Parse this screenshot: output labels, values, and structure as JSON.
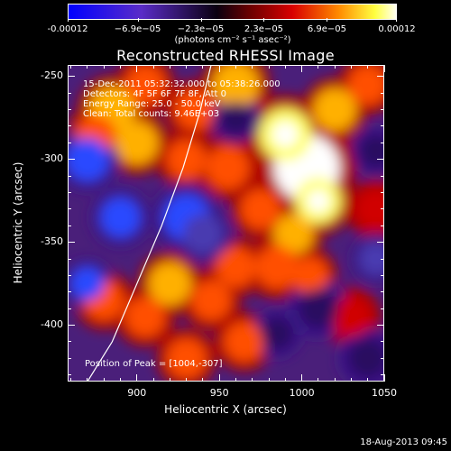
{
  "chart_data": {
    "type": "heatmap",
    "title": "Reconstructed RHESSI Image",
    "xlabel": "Heliocentric X (arcsec)",
    "ylabel": "Heliocentric Y (arcsec)",
    "xlim": [
      858,
      1050
    ],
    "ylim": [
      -434,
      -243
    ],
    "xticks": [
      900,
      950,
      1000,
      1050
    ],
    "yticks": [
      -250,
      -300,
      -350,
      -400
    ],
    "colorbar": {
      "range": [
        -0.00012,
        0.00012
      ],
      "tick_values": [
        -0.00012,
        -6.9e-05,
        -2.3e-05,
        2.3e-05,
        6.9e-05,
        0.00012
      ],
      "tick_labels": [
        "-0.00012",
        "−6.9e−05",
        "−2.3e−05",
        "2.3e−05",
        "6.9e−05",
        "0.00012"
      ],
      "units": "(photons cm⁻² s⁻¹ asec⁻²)"
    },
    "annotations": [
      "15-Dec-2011 05:32:32.000 to 05:38:26.000",
      "Detectors: 4F 5F 6F 7F 8F, Att 0",
      "Energy Range: 25.0 - 50.0 keV",
      "Clean: Total counts: 9.46E+03"
    ],
    "peak_label": "Position of Peak = [1004,-307]",
    "peak": [
      1004,
      -307
    ],
    "limb_curve": [
      [
        870,
        -434
      ],
      [
        885,
        -410
      ],
      [
        900,
        -375
      ],
      [
        915,
        -340
      ],
      [
        928,
        -305
      ],
      [
        938,
        -272
      ],
      [
        945,
        -243
      ]
    ],
    "blobs": [
      {
        "x": 1003,
        "y": -305,
        "r": 20,
        "v": 1.0
      },
      {
        "x": 1010,
        "y": -325,
        "r": 14,
        "v": 0.8
      },
      {
        "x": 990,
        "y": -285,
        "r": 16,
        "v": 0.75
      },
      {
        "x": 1020,
        "y": -270,
        "r": 13,
        "v": 0.6
      },
      {
        "x": 1040,
        "y": -255,
        "r": 12,
        "v": 0.55
      },
      {
        "x": 960,
        "y": -255,
        "r": 14,
        "v": 0.6
      },
      {
        "x": 935,
        "y": -270,
        "r": 12,
        "v": 0.55
      },
      {
        "x": 905,
        "y": -255,
        "r": 12,
        "v": 0.5
      },
      {
        "x": 885,
        "y": -270,
        "r": 14,
        "v": 0.6
      },
      {
        "x": 875,
        "y": -285,
        "r": 12,
        "v": 0.5
      },
      {
        "x": 900,
        "y": -290,
        "r": 13,
        "v": 0.7
      },
      {
        "x": 930,
        "y": -300,
        "r": 12,
        "v": 0.5
      },
      {
        "x": 955,
        "y": -305,
        "r": 13,
        "v": 0.55
      },
      {
        "x": 975,
        "y": -330,
        "r": 12,
        "v": 0.45
      },
      {
        "x": 995,
        "y": -345,
        "r": 12,
        "v": 0.6
      },
      {
        "x": 985,
        "y": -365,
        "r": 13,
        "v": 0.55
      },
      {
        "x": 1005,
        "y": -370,
        "r": 11,
        "v": 0.5
      },
      {
        "x": 960,
        "y": -365,
        "r": 12,
        "v": 0.5
      },
      {
        "x": 945,
        "y": -385,
        "r": 12,
        "v": 0.45
      },
      {
        "x": 920,
        "y": -375,
        "r": 13,
        "v": 0.65
      },
      {
        "x": 905,
        "y": -395,
        "r": 12,
        "v": 0.5
      },
      {
        "x": 880,
        "y": -385,
        "r": 12,
        "v": 0.45
      },
      {
        "x": 965,
        "y": -410,
        "r": 12,
        "v": 0.55
      },
      {
        "x": 930,
        "y": -420,
        "r": 12,
        "v": 0.45
      },
      {
        "x": 1030,
        "y": -395,
        "r": 12,
        "v": 0.4
      },
      {
        "x": 1045,
        "y": -330,
        "r": 12,
        "v": 0.4
      },
      {
        "x": 890,
        "y": -335,
        "r": 12,
        "v": -0.5
      },
      {
        "x": 870,
        "y": -300,
        "r": 13,
        "v": -0.55
      },
      {
        "x": 930,
        "y": -335,
        "r": 14,
        "v": -0.5
      },
      {
        "x": 940,
        "y": -345,
        "r": 12,
        "v": -0.45
      },
      {
        "x": 1045,
        "y": -360,
        "r": 10,
        "v": -0.45
      },
      {
        "x": 870,
        "y": -375,
        "r": 10,
        "v": -0.5
      },
      {
        "x": 985,
        "y": -405,
        "r": 10,
        "v": -0.3
      },
      {
        "x": 1010,
        "y": -390,
        "r": 12,
        "v": -0.35
      },
      {
        "x": 1040,
        "y": -420,
        "r": 12,
        "v": -0.3
      },
      {
        "x": 960,
        "y": -275,
        "r": 10,
        "v": -0.3
      },
      {
        "x": 1045,
        "y": -295,
        "r": 10,
        "v": -0.3
      }
    ]
  },
  "footer": {
    "timestamp": "18-Aug-2013 09:45"
  }
}
